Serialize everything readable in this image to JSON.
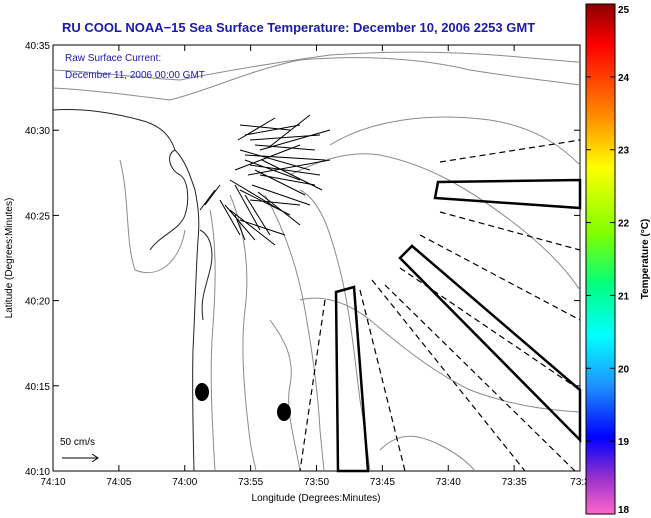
{
  "title": "RU COOL  NOAA−15  Sea Surface Temperature:  December 10, 2006 2253 GMT",
  "annotation": {
    "line1": "Raw Surface Current:",
    "line2": "December 11, 2006 00:00 GMT"
  },
  "scale_label": "50 cm/s",
  "xlabel": "Longitude (Degrees:Minutes)",
  "ylabel": "Latitude (Degrees:Minutes)",
  "x_ticks": [
    "74:10",
    "74:05",
    "74:00",
    "73:55",
    "73:50",
    "73:45",
    "73:40",
    "73:35",
    "73:3"
  ],
  "y_ticks": [
    "40:35",
    "40:30",
    "40:25",
    "40:20",
    "40:15",
    "40:10"
  ],
  "colorbar": {
    "label": "Temperature (°C)",
    "ticks": [
      "25",
      "24",
      "23",
      "22",
      "21",
      "20",
      "19",
      "18"
    ],
    "range": [
      18,
      25
    ]
  }
}
